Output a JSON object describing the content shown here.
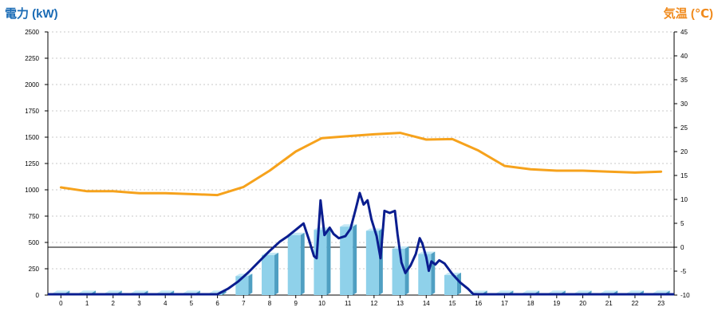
{
  "chart_data": {
    "type": "bar",
    "left_axis_title": "電力 (kW)",
    "right_axis_title": "気温 (℃)",
    "categories": [
      "0",
      "1",
      "2",
      "3",
      "4",
      "5",
      "6",
      "7",
      "8",
      "9",
      "10",
      "11",
      "12",
      "13",
      "14",
      "15",
      "16",
      "17",
      "18",
      "19",
      "20",
      "21",
      "22",
      "23"
    ],
    "left_ticks": [
      "0",
      "250",
      "500",
      "750",
      "1000",
      "1250",
      "1500",
      "1750",
      "2000",
      "2250",
      "2500"
    ],
    "right_ticks": [
      "-10",
      "-5",
      "0",
      "5",
      "10",
      "15",
      "20",
      "25",
      "30",
      "35",
      "40",
      "45"
    ],
    "ylim_left": [
      0,
      2500
    ],
    "ylim_right": [
      -10,
      45
    ],
    "grid": true,
    "colors": {
      "bar": "#8fd1ea",
      "bar_side": "#4f9fc2",
      "bar_top": "#c4e8f5",
      "power_line": "#0a1d8f",
      "temp_line": "#f6a21c",
      "zero_line": "#000000",
      "left_title": "#1a6bb5",
      "right_title": "#f08a1c"
    },
    "series": [
      {
        "kind": "bar",
        "axis": "left",
        "values": [
          20,
          20,
          20,
          20,
          20,
          20,
          20,
          180,
          380,
          570,
          620,
          650,
          610,
          440,
          390,
          190,
          20,
          20,
          20,
          20,
          20,
          20,
          20,
          20
        ]
      },
      {
        "kind": "line",
        "axis": "left",
        "x": [
          6,
          6.4,
          6.8,
          7.2,
          7.6,
          8,
          8.4,
          8.7,
          9,
          9.15,
          9.3,
          9.5,
          9.7,
          9.8,
          9.95,
          10.1,
          10.3,
          10.45,
          10.65,
          10.9,
          11.1,
          11.3,
          11.45,
          11.6,
          11.75,
          11.9,
          12.1,
          12.25,
          12.4,
          12.6,
          12.8,
          12.9,
          13.05,
          13.2,
          13.4,
          13.6,
          13.75,
          13.85,
          14,
          14.1,
          14.2,
          14.35,
          14.5,
          14.7,
          15,
          15.3,
          15.6,
          15.8,
          16,
          17,
          18,
          19,
          20,
          21,
          22,
          23
        ],
        "y": [
          0,
          60,
          130,
          220,
          320,
          420,
          510,
          560,
          620,
          650,
          680,
          530,
          370,
          350,
          900,
          570,
          640,
          580,
          540,
          560,
          630,
          820,
          970,
          860,
          900,
          720,
          560,
          350,
          800,
          780,
          800,
          580,
          310,
          210,
          280,
          390,
          540,
          490,
          360,
          230,
          320,
          290,
          330,
          300,
          200,
          120,
          60,
          10,
          0,
          0,
          0,
          0,
          0,
          0,
          0,
          0
        ]
      },
      {
        "kind": "line",
        "axis": "right",
        "x": [
          0,
          1,
          2,
          3,
          4,
          5,
          6,
          7,
          8,
          9,
          10,
          11,
          12,
          13,
          14,
          15,
          16,
          17,
          18,
          19,
          20,
          21,
          22,
          23
        ],
        "y": [
          12.5,
          11.7,
          11.7,
          11.3,
          11.3,
          11.1,
          10.9,
          12.6,
          16.0,
          20.0,
          22.8,
          23.2,
          23.6,
          23.9,
          22.5,
          22.6,
          20.2,
          17.0,
          16.3,
          16.0,
          16.0,
          15.8,
          15.6,
          15.8
        ]
      }
    ]
  }
}
